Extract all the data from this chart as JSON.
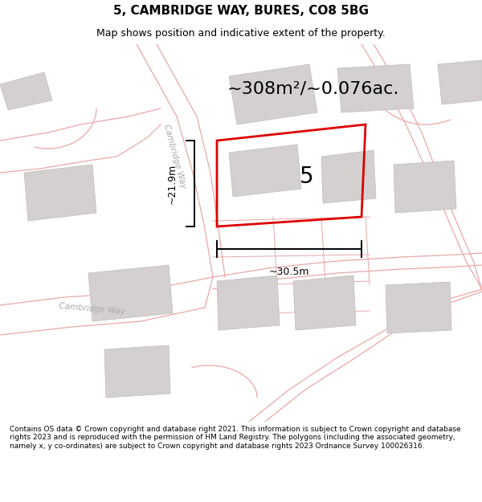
{
  "title_line1": "5, CAMBRIDGE WAY, BURES, CO8 5BG",
  "title_line2": "Map shows position and indicative extent of the property.",
  "area_label": "~308m²/~0.076ac.",
  "plot_number": "5",
  "dim_height": "~21.9m",
  "dim_width": "~30.5m",
  "footer_text": "Contains OS data © Crown copyright and database right 2021. This information is subject to Crown copyright and database rights 2023 and is reproduced with the permission of HM Land Registry. The polygons (including the associated geometry, namely x, y co-ordinates) are subject to Crown copyright and database rights 2023 Ordnance Survey 100026316.",
  "bg_color": "#ffffff",
  "map_bg": "#f5f0f0",
  "building_fill": "#d4d0d0",
  "building_edge": "#c0bbbb",
  "road_line_color": "#e8a8a8",
  "road_fill": "#ffffff",
  "plot_outline_color": "#dd0000",
  "dim_line_color": "#000000",
  "label_color": "#000000",
  "road_label_color": "#aaaaaa",
  "title_fontsize": 11,
  "subtitle_fontsize": 9,
  "area_fontsize": 16,
  "plot_num_fontsize": 20,
  "dim_fontsize": 9,
  "road_label_fontsize": 7.5,
  "footer_fontsize": 6.5
}
